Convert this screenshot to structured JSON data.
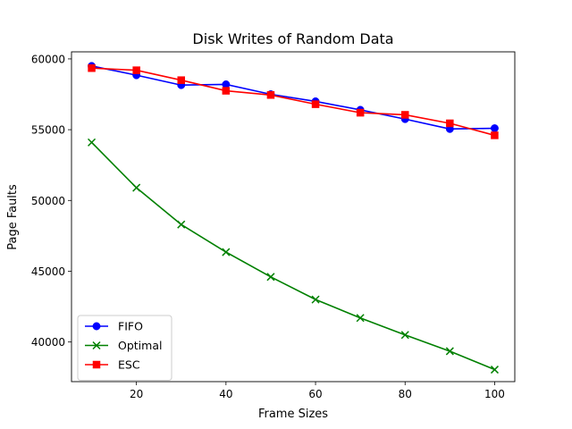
{
  "chart_data": {
    "type": "line",
    "title": "Disk Writes of Random Data",
    "xlabel": "Frame Sizes",
    "ylabel": "Page Faults",
    "x": [
      10,
      20,
      30,
      40,
      50,
      60,
      70,
      80,
      90,
      100
    ],
    "xlim": [
      5.5,
      104.5
    ],
    "ylim": [
      37200,
      60500
    ],
    "xticks": [
      20,
      40,
      60,
      80,
      100
    ],
    "yticks": [
      40000,
      45000,
      50000,
      55000,
      60000
    ],
    "grid": false,
    "legend_position": "lower-left",
    "series": [
      {
        "name": "FIFO",
        "color": "#0000ff",
        "marker": "circle",
        "values": [
          59500,
          58850,
          58150,
          58200,
          57500,
          57000,
          56400,
          55750,
          55050,
          55100
        ]
      },
      {
        "name": "Optimal",
        "color": "#008000",
        "marker": "x",
        "values": [
          54100,
          50900,
          48300,
          46350,
          44600,
          43000,
          41700,
          40500,
          39350,
          38050
        ]
      },
      {
        "name": "ESC",
        "color": "#ff0000",
        "marker": "square",
        "values": [
          59350,
          59200,
          58500,
          57750,
          57450,
          56800,
          56200,
          56050,
          55450,
          54600
        ]
      }
    ]
  }
}
